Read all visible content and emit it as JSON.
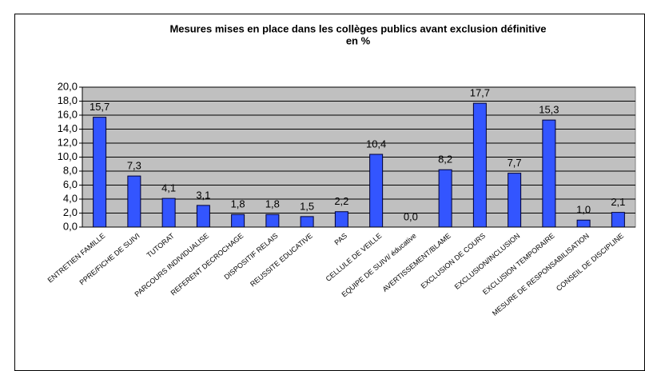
{
  "chart_data": {
    "type": "bar",
    "title": "Mesures mises en place dans les collèges publics avant exclusion définitive",
    "subtitle": "en %",
    "categories": [
      "ENTRETIEN FAMILLE",
      "PPRE/FICHE DE SUIVI",
      "TUTORAT",
      "PARCOURS INDIVIDUALISE",
      "REFERENT DECROCHAGE",
      "DISPOSITIF RELAIS",
      "REUSSITE EDUCATIVE",
      "PAS",
      "CELLULE DE VEILLE",
      "EQUIPE DE SUIVI/ éducative",
      "AVERTISSEMENT/BLAME",
      "EXCLUSION DE COURS",
      "EXCLUSION/INCLUSION",
      "EXCLUSION TEMPORAIRE",
      "MESURE DE RESPONSABILISATION",
      "CONSEIL DE DISCIPLINE"
    ],
    "values": [
      15.7,
      7.3,
      4.1,
      3.1,
      1.8,
      1.8,
      1.5,
      2.2,
      10.4,
      0.0,
      8.2,
      17.7,
      7.7,
      15.3,
      1.0,
      2.1
    ],
    "value_labels": [
      "15,7",
      "7,3",
      "4,1",
      "3,1",
      "1,8",
      "1,8",
      "1,5",
      "2,2",
      "10,4",
      "0,0",
      "8,2",
      "17,7",
      "7,7",
      "15,3",
      "1,0",
      "2,1"
    ],
    "color": "#3355ff",
    "ylim": [
      0,
      20
    ],
    "yticks": [
      {
        "value": 0,
        "label": "0,0"
      },
      {
        "value": 2,
        "label": "2,0"
      },
      {
        "value": 4,
        "label": "4,0"
      },
      {
        "value": 6,
        "label": "6,0"
      },
      {
        "value": 8,
        "label": "8,0"
      },
      {
        "value": 10,
        "label": "10,0"
      },
      {
        "value": 12,
        "label": "12,0"
      },
      {
        "value": 14,
        "label": "14,0"
      },
      {
        "value": 16,
        "label": "16,0"
      },
      {
        "value": 18,
        "label": "18,0"
      },
      {
        "value": 20,
        "label": "20,0"
      }
    ],
    "grid": true
  }
}
